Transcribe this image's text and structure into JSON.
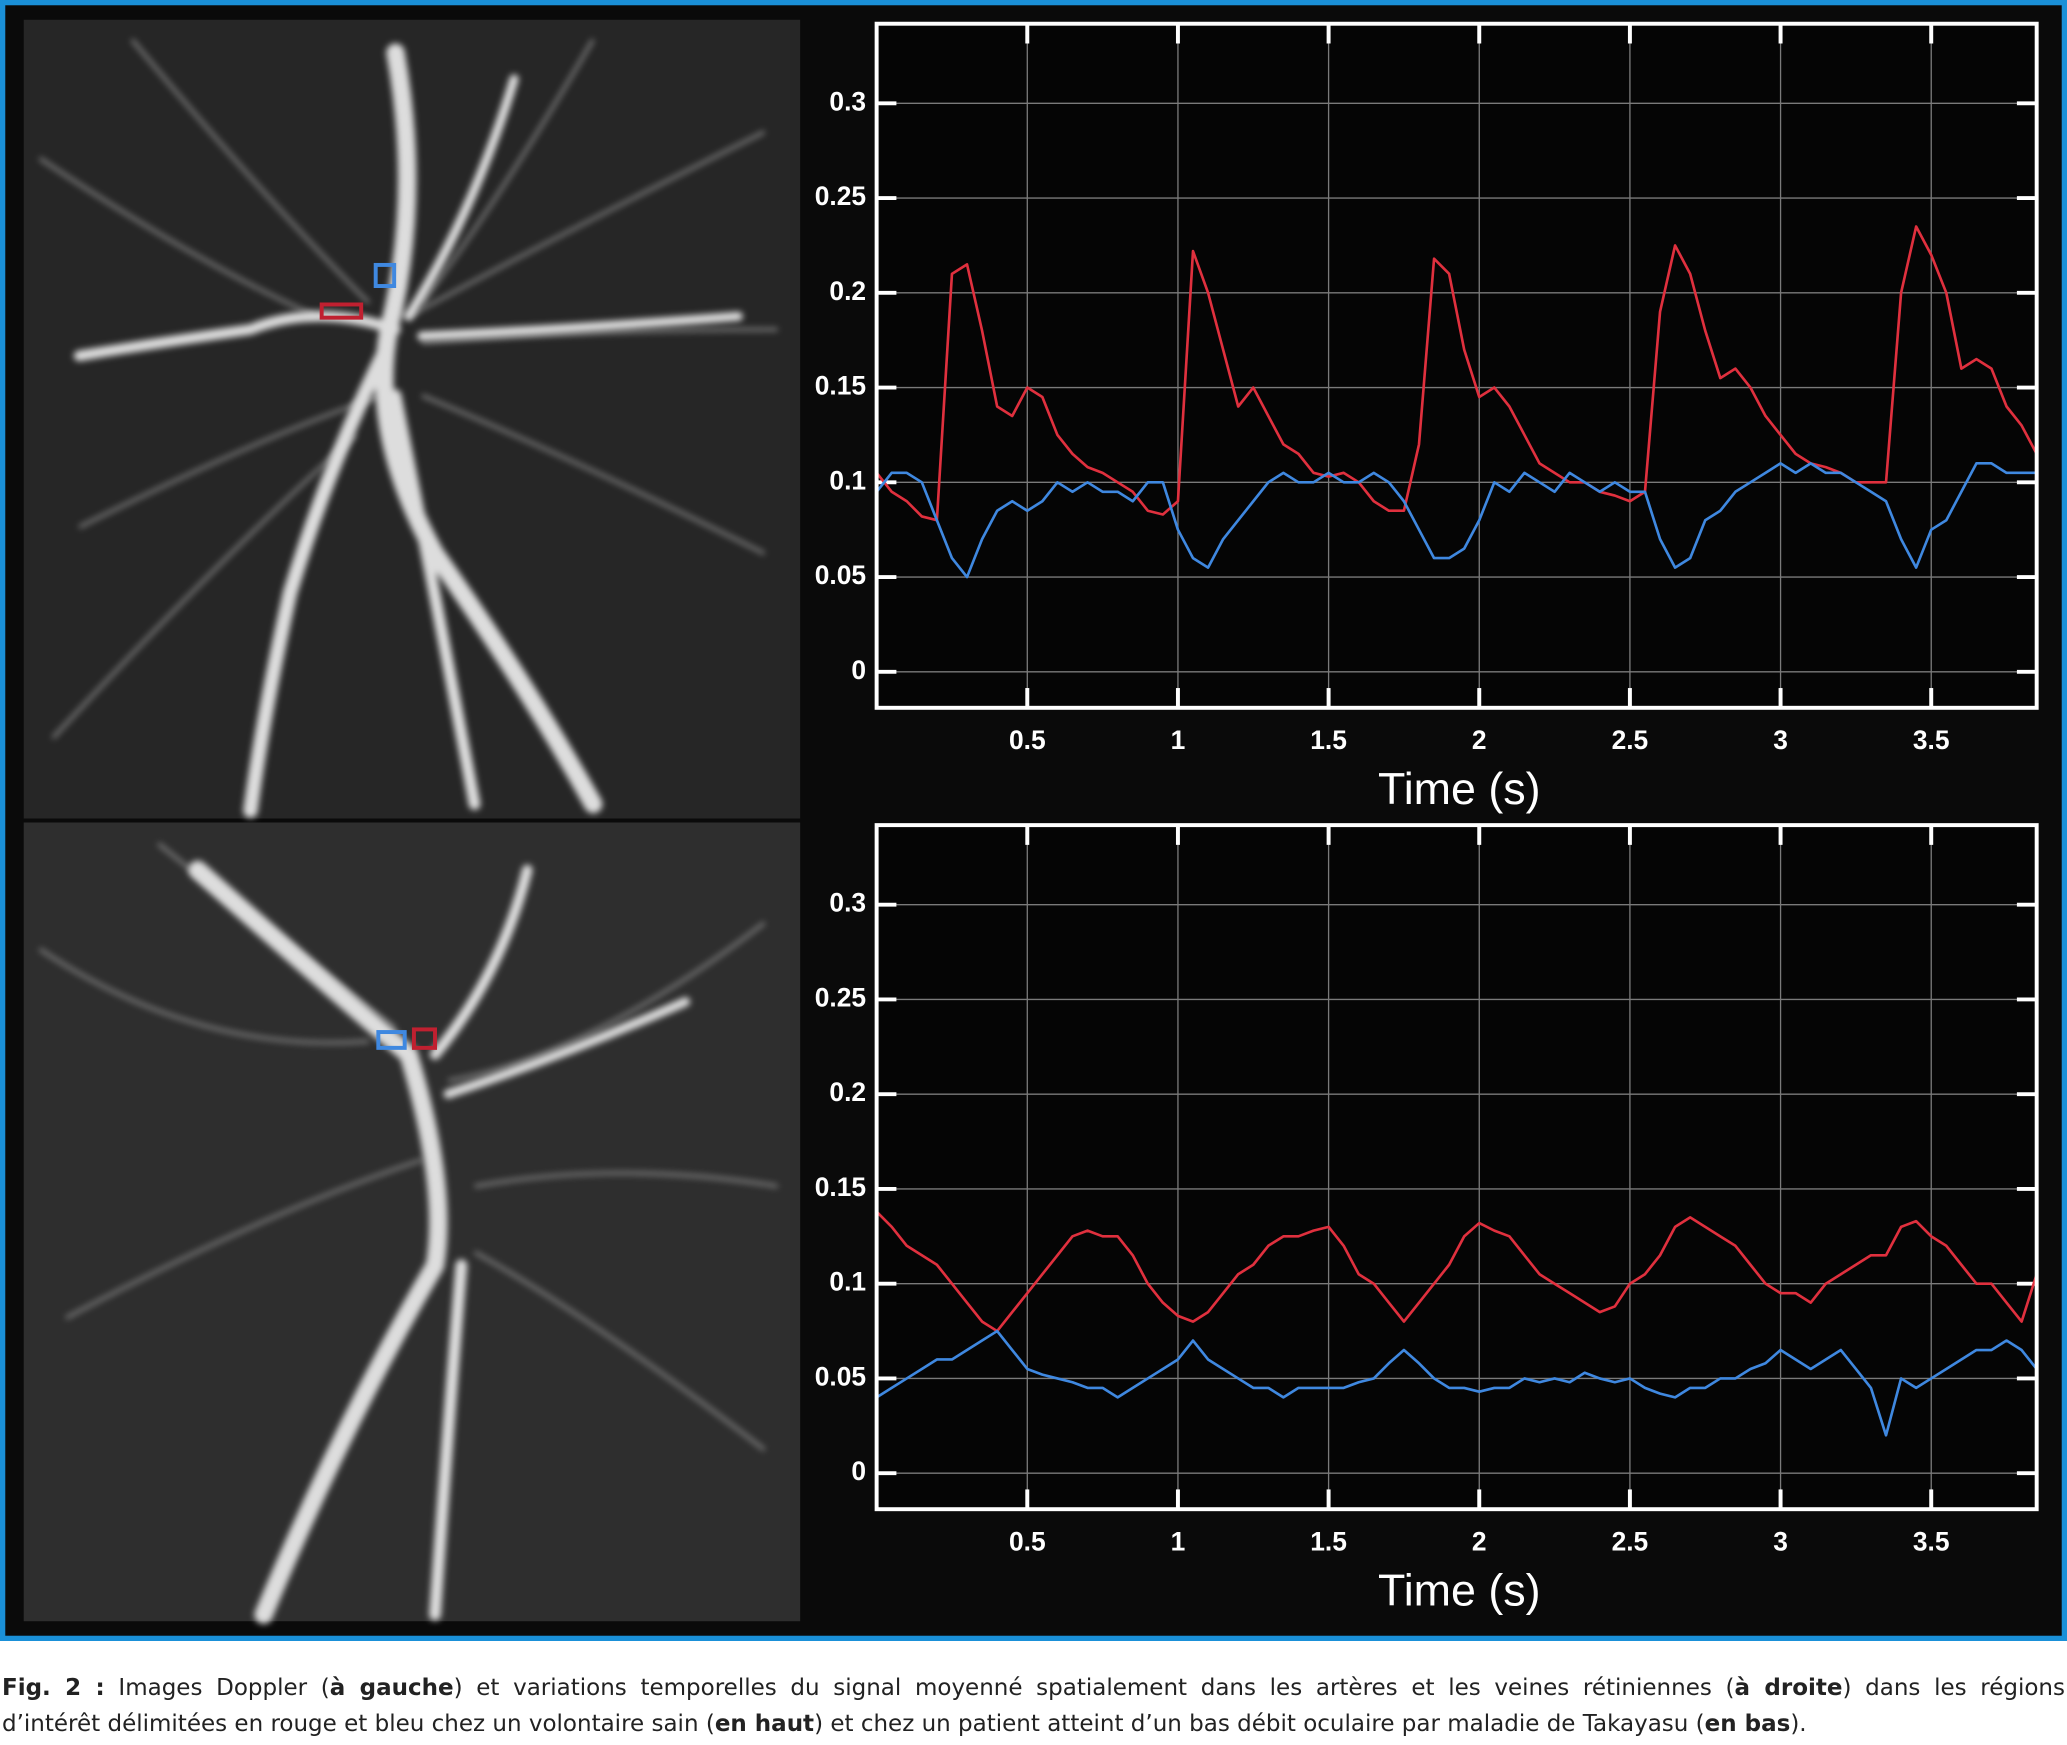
{
  "chart_data": [
    {
      "type": "line",
      "xlabel": "Time (s)",
      "grid": true,
      "xlim": [
        0,
        3.85
      ],
      "xticks": [
        0.5,
        1,
        1.5,
        2,
        2.5,
        3,
        3.5
      ],
      "ylim": [
        -0.019,
        0.342
      ],
      "yticks": [
        0,
        0.05,
        0.1,
        0.15,
        0.2,
        0.25,
        0.3
      ],
      "x": [
        0,
        0.05,
        0.1,
        0.15,
        0.2,
        0.25,
        0.3,
        0.35,
        0.4,
        0.45,
        0.5,
        0.55,
        0.6,
        0.65,
        0.7,
        0.75,
        0.8,
        0.85,
        0.9,
        0.95,
        1,
        1.05,
        1.1,
        1.15,
        1.2,
        1.25,
        1.3,
        1.35,
        1.4,
        1.45,
        1.5,
        1.55,
        1.6,
        1.65,
        1.7,
        1.75,
        1.8,
        1.85,
        1.9,
        1.95,
        2,
        2.05,
        2.1,
        2.15,
        2.2,
        2.25,
        2.3,
        2.35,
        2.4,
        2.45,
        2.5,
        2.55,
        2.6,
        2.65,
        2.7,
        2.75,
        2.8,
        2.85,
        2.9,
        2.95,
        3,
        3.05,
        3.1,
        3.15,
        3.2,
        3.25,
        3.3,
        3.35,
        3.4,
        3.45,
        3.5,
        3.55,
        3.6,
        3.65,
        3.7,
        3.75,
        3.8,
        3.85
      ],
      "series": [
        {
          "color": "#e0303e",
          "values": [
            0.105,
            0.095,
            0.09,
            0.082,
            0.08,
            0.21,
            0.215,
            0.18,
            0.14,
            0.135,
            0.15,
            0.145,
            0.125,
            0.115,
            0.108,
            0.105,
            0.1,
            0.095,
            0.085,
            0.083,
            0.09,
            0.222,
            0.2,
            0.17,
            0.14,
            0.15,
            0.135,
            0.12,
            0.115,
            0.105,
            0.103,
            0.105,
            0.1,
            0.09,
            0.085,
            0.085,
            0.12,
            0.218,
            0.21,
            0.17,
            0.145,
            0.15,
            0.14,
            0.125,
            0.11,
            0.105,
            0.1,
            0.1,
            0.095,
            0.093,
            0.09,
            0.095,
            0.19,
            0.225,
            0.21,
            0.18,
            0.155,
            0.16,
            0.15,
            0.135,
            0.125,
            0.115,
            0.11,
            0.108,
            0.105,
            0.1,
            0.1,
            0.1,
            0.2,
            0.235,
            0.22,
            0.2,
            0.16,
            0.165,
            0.16,
            0.14,
            0.13,
            0.115
          ]
        },
        {
          "color": "#3f88e0",
          "values": [
            0.095,
            0.105,
            0.105,
            0.1,
            0.08,
            0.06,
            0.05,
            0.07,
            0.085,
            0.09,
            0.085,
            0.09,
            0.1,
            0.095,
            0.1,
            0.095,
            0.095,
            0.09,
            0.1,
            0.1,
            0.075,
            0.06,
            0.055,
            0.07,
            0.08,
            0.09,
            0.1,
            0.105,
            0.1,
            0.1,
            0.105,
            0.1,
            0.1,
            0.105,
            0.1,
            0.09,
            0.075,
            0.06,
            0.06,
            0.065,
            0.08,
            0.1,
            0.095,
            0.105,
            0.1,
            0.095,
            0.105,
            0.1,
            0.095,
            0.1,
            0.095,
            0.095,
            0.07,
            0.055,
            0.06,
            0.08,
            0.085,
            0.095,
            0.1,
            0.105,
            0.11,
            0.105,
            0.11,
            0.105,
            0.105,
            0.1,
            0.095,
            0.09,
            0.07,
            0.055,
            0.075,
            0.08,
            0.095,
            0.11,
            0.11,
            0.105,
            0.105,
            0.105
          ]
        }
      ]
    },
    {
      "type": "line",
      "xlabel": "Time (s)",
      "grid": true,
      "xlim": [
        0,
        3.85
      ],
      "xticks": [
        0.5,
        1,
        1.5,
        2,
        2.5,
        3,
        3.5
      ],
      "ylim": [
        -0.019,
        0.342
      ],
      "yticks": [
        0,
        0.05,
        0.1,
        0.15,
        0.2,
        0.25,
        0.3
      ],
      "x": [
        0,
        0.05,
        0.1,
        0.15,
        0.2,
        0.25,
        0.3,
        0.35,
        0.4,
        0.45,
        0.5,
        0.55,
        0.6,
        0.65,
        0.7,
        0.75,
        0.8,
        0.85,
        0.9,
        0.95,
        1,
        1.05,
        1.1,
        1.15,
        1.2,
        1.25,
        1.3,
        1.35,
        1.4,
        1.45,
        1.5,
        1.55,
        1.6,
        1.65,
        1.7,
        1.75,
        1.8,
        1.85,
        1.9,
        1.95,
        2,
        2.05,
        2.1,
        2.15,
        2.2,
        2.25,
        2.3,
        2.35,
        2.4,
        2.45,
        2.5,
        2.55,
        2.6,
        2.65,
        2.7,
        2.75,
        2.8,
        2.85,
        2.9,
        2.95,
        3,
        3.05,
        3.1,
        3.15,
        3.2,
        3.25,
        3.3,
        3.35,
        3.4,
        3.45,
        3.5,
        3.55,
        3.6,
        3.65,
        3.7,
        3.75,
        3.8,
        3.85
      ],
      "series": [
        {
          "color": "#e0303e",
          "values": [
            0.138,
            0.13,
            0.12,
            0.115,
            0.11,
            0.1,
            0.09,
            0.08,
            0.075,
            0.085,
            0.095,
            0.105,
            0.115,
            0.125,
            0.128,
            0.125,
            0.125,
            0.115,
            0.1,
            0.09,
            0.083,
            0.08,
            0.085,
            0.095,
            0.105,
            0.11,
            0.12,
            0.125,
            0.125,
            0.128,
            0.13,
            0.12,
            0.105,
            0.1,
            0.09,
            0.08,
            0.09,
            0.1,
            0.11,
            0.125,
            0.132,
            0.128,
            0.125,
            0.115,
            0.105,
            0.1,
            0.095,
            0.09,
            0.085,
            0.088,
            0.1,
            0.105,
            0.115,
            0.13,
            0.135,
            0.13,
            0.125,
            0.12,
            0.11,
            0.1,
            0.095,
            0.095,
            0.09,
            0.1,
            0.105,
            0.11,
            0.115,
            0.115,
            0.13,
            0.133,
            0.125,
            0.12,
            0.11,
            0.1,
            0.1,
            0.09,
            0.08,
            0.105
          ]
        },
        {
          "color": "#3f88e0",
          "values": [
            0.04,
            0.045,
            0.05,
            0.055,
            0.06,
            0.06,
            0.065,
            0.07,
            0.075,
            0.065,
            0.055,
            0.052,
            0.05,
            0.048,
            0.045,
            0.045,
            0.04,
            0.045,
            0.05,
            0.055,
            0.06,
            0.07,
            0.06,
            0.055,
            0.05,
            0.045,
            0.045,
            0.04,
            0.045,
            0.045,
            0.045,
            0.045,
            0.048,
            0.05,
            0.058,
            0.065,
            0.058,
            0.05,
            0.045,
            0.045,
            0.043,
            0.045,
            0.045,
            0.05,
            0.048,
            0.05,
            0.048,
            0.053,
            0.05,
            0.048,
            0.05,
            0.045,
            0.042,
            0.04,
            0.045,
            0.045,
            0.05,
            0.05,
            0.055,
            0.058,
            0.065,
            0.06,
            0.055,
            0.06,
            0.065,
            0.055,
            0.045,
            0.02,
            0.05,
            0.045,
            0.05,
            0.055,
            0.06,
            0.065,
            0.065,
            0.07,
            0.065,
            0.055
          ]
        }
      ]
    }
  ],
  "caption": {
    "lines": [
      [
        {
          "text": "Fig. 2 :",
          "bold": true
        },
        {
          "text": " Images Doppler (",
          "bold": false
        },
        {
          "text": "à gauche",
          "bold": true
        },
        {
          "text": ") et variations temporelles du signal moyenné spatialement dans les artères et les veines rétiniennes (",
          "bold": false
        },
        {
          "text": "à droite",
          "bold": true
        },
        {
          "text": ") dans les régions",
          "bold": false
        }
      ],
      [
        {
          "text": "d’intérêt délimitées en rouge et bleu chez un volontaire sain (",
          "bold": false
        },
        {
          "text": "en haut",
          "bold": true
        },
        {
          "text": ") et chez un patient atteint d’un bas débit oculaire par maladie de Takayasu (",
          "bold": false
        },
        {
          "text": "en bas",
          "bold": true
        },
        {
          "text": ").",
          "bold": false
        }
      ]
    ]
  }
}
